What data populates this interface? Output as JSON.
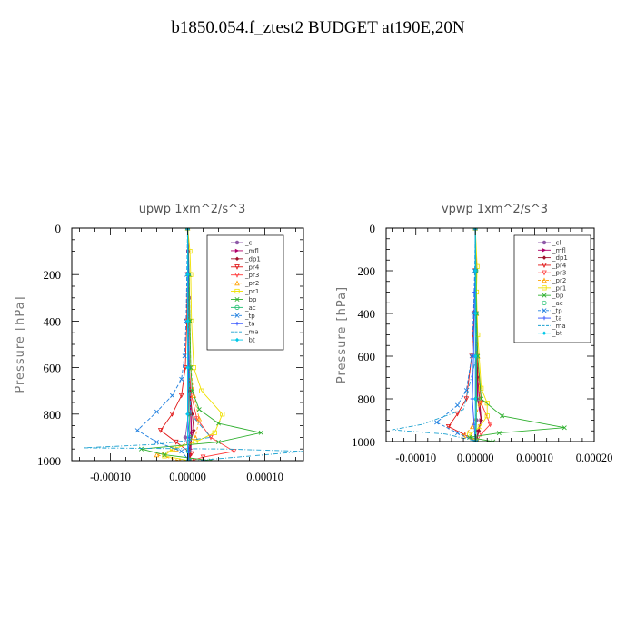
{
  "title": "b1850.054.f_ztest2  BUDGET at190E,20N",
  "colors": {
    "cl": "#8e5aa8",
    "mfl": "#b0006a",
    "dp1": "#a0102a",
    "pr4": "#e01515",
    "pr3": "#ff3a3a",
    "pr2": "#ffa000",
    "pr1": "#f0e000",
    "bp": "#30b030",
    "ac": "#20c070",
    "tp": "#2080e0",
    "ta": "#3050ff",
    "ma": "#1aa0d0",
    "bt": "#00c8e8"
  },
  "chart_data": [
    {
      "type": "line",
      "title": "upwp   1xm^2/s^3",
      "xlabel": "",
      "ylabel": "Pressure [hPa]",
      "xlim": [
        -0.00015,
        0.00015
      ],
      "ylim": [
        1000,
        0
      ],
      "y_inverted": true,
      "xticks": [
        -0.0001,
        0.0,
        0.0001
      ],
      "xtick_labels": [
        "-0.00010",
        "0.00000",
        "0.00010"
      ],
      "yticks": [
        0,
        200,
        400,
        600,
        800,
        1000
      ],
      "ytick_labels": [
        "0",
        "200",
        "400",
        "600",
        "800",
        "1000"
      ],
      "legend": "top-right",
      "series": [
        {
          "name": "_cl",
          "key": "cl",
          "x": [
            0,
            1e-06,
            1e-06,
            2e-06,
            2e-06,
            2e-06,
            1e-06,
            -3e-06,
            2e-06,
            1e-06
          ],
          "y": [
            0,
            100,
            200,
            300,
            400,
            600,
            800,
            900,
            960,
            1000
          ]
        },
        {
          "name": "_mfl",
          "key": "mfl",
          "x": [
            0,
            1e-06,
            1e-06,
            1e-06,
            2e-06,
            3e-06,
            4e-06,
            5e-06,
            4e-06,
            2e-06
          ],
          "y": [
            0,
            100,
            200,
            400,
            600,
            700,
            800,
            880,
            950,
            1000
          ]
        },
        {
          "name": "_dp1",
          "key": "dp1",
          "x": [
            0,
            1e-06,
            1e-06,
            2e-06,
            3e-06,
            6e-06,
            8e-06,
            3e-06,
            2e-06
          ],
          "y": [
            0,
            200,
            400,
            600,
            700,
            800,
            870,
            930,
            1000
          ]
        },
        {
          "name": "_pr4",
          "key": "pr4",
          "x": [
            0,
            0,
            -1e-06,
            -3e-06,
            -8e-06,
            -2e-05,
            -3.5e-05,
            -1.5e-05,
            5e-06,
            2e-06
          ],
          "y": [
            0,
            200,
            400,
            600,
            720,
            800,
            870,
            920,
            970,
            1000
          ]
        },
        {
          "name": "_pr3",
          "key": "pr3",
          "x": [
            0,
            0,
            1e-06,
            2e-06,
            5e-06,
            1.2e-05,
            3e-05,
            6e-05,
            2e-05,
            5e-06
          ],
          "y": [
            0,
            200,
            400,
            600,
            720,
            820,
            900,
            960,
            985,
            1000
          ]
        },
        {
          "name": "_pr2",
          "key": "pr2",
          "x": [
            0,
            2e-06,
            3e-06,
            4e-06,
            8e-06,
            1.5e-05,
            1e-05,
            -1.5e-05,
            -4e-05,
            -1e-05
          ],
          "y": [
            0,
            200,
            400,
            600,
            720,
            820,
            900,
            950,
            975,
            1000
          ]
        },
        {
          "name": "_pr1",
          "key": "pr1",
          "x": [
            0,
            3e-06,
            4e-06,
            5e-06,
            8e-06,
            1.8e-05,
            4.5e-05,
            3.5e-05,
            1e-05,
            -2e-05,
            -3e-05,
            2e-06
          ],
          "y": [
            0,
            100,
            200,
            400,
            600,
            700,
            800,
            880,
            920,
            950,
            980,
            1000
          ]
        },
        {
          "name": "_bp",
          "key": "bp",
          "x": [
            0,
            2e-06,
            3e-06,
            4e-06,
            6e-06,
            1.5e-05,
            4e-05,
            9.5e-05,
            4e-05,
            -6e-05,
            -3e-05,
            3e-05
          ],
          "y": [
            0,
            200,
            400,
            600,
            700,
            780,
            840,
            880,
            920,
            950,
            975,
            1000
          ]
        },
        {
          "name": "_ac",
          "key": "ac",
          "x": [
            0,
            1e-06,
            1e-06,
            2e-06,
            2e-06,
            3e-06,
            1e-06,
            2e-06
          ],
          "y": [
            0,
            200,
            400,
            600,
            800,
            900,
            960,
            1000
          ]
        },
        {
          "name": "_tp",
          "key": "tp",
          "x": [
            0,
            -1e-06,
            -2e-06,
            -4e-06,
            -8e-06,
            -2e-05,
            -4e-05,
            -6.5e-05,
            -4e-05,
            -8e-06,
            2e-06
          ],
          "y": [
            0,
            200,
            400,
            550,
            650,
            720,
            790,
            870,
            920,
            960,
            1000
          ]
        },
        {
          "name": "_ta",
          "key": "ta",
          "x": [
            0,
            1e-06,
            0,
            1e-06,
            0,
            2e-06,
            1e-06,
            1e-06
          ],
          "y": [
            0,
            200,
            400,
            600,
            800,
            900,
            960,
            1000
          ]
        },
        {
          "name": "_ma",
          "key": "ma",
          "x": [
            0,
            0,
            1e-06,
            2e-06,
            4e-06,
            3e-05,
            -4e-05,
            -0.000135,
            5e-05,
            0.00015,
            0.0001,
            1e-05
          ],
          "y": [
            0,
            200,
            400,
            600,
            800,
            900,
            930,
            945,
            950,
            960,
            975,
            1000
          ]
        },
        {
          "name": "_bt",
          "key": "bt",
          "x": [
            0,
            0,
            0,
            0,
            0,
            0
          ],
          "y": [
            0,
            200,
            400,
            600,
            800,
            1000
          ]
        }
      ]
    },
    {
      "type": "line",
      "title": "vpwp   1xm^2/s^3",
      "xlabel": "",
      "ylabel": "Pressure [hPa]",
      "xlim": [
        -0.00015,
        0.0002
      ],
      "ylim": [
        1000,
        0
      ],
      "y_inverted": true,
      "xticks": [
        -0.0001,
        0.0,
        0.0001,
        0.0002
      ],
      "xtick_labels": [
        "-0.00010",
        "0.00000",
        "0.00010",
        "0.00020"
      ],
      "yticks": [
        0,
        200,
        400,
        600,
        800,
        1000
      ],
      "ytick_labels": [
        "0",
        "200",
        "400",
        "600",
        "800",
        "1000"
      ],
      "legend": "top-right",
      "series": [
        {
          "name": "_cl",
          "key": "cl",
          "x": [
            0,
            1e-06,
            1e-06,
            1e-06,
            1e-06,
            2e-06,
            1e-06
          ],
          "y": [
            0,
            200,
            400,
            600,
            800,
            900,
            1000
          ]
        },
        {
          "name": "_mfl",
          "key": "mfl",
          "x": [
            0,
            1e-06,
            1e-06,
            2e-06,
            4e-06,
            1e-05,
            5e-06,
            2e-06
          ],
          "y": [
            0,
            200,
            400,
            600,
            800,
            900,
            950,
            1000
          ]
        },
        {
          "name": "_dp1",
          "key": "dp1",
          "x": [
            0,
            1e-06,
            2e-06,
            4e-06,
            1e-05,
            6e-06,
            2e-06
          ],
          "y": [
            0,
            200,
            400,
            700,
            900,
            950,
            1000
          ]
        },
        {
          "name": "_pr4",
          "key": "pr4",
          "x": [
            0,
            0,
            -2e-06,
            -6e-06,
            -1.5e-05,
            -3e-05,
            -4.5e-05,
            -2e-05,
            2e-06
          ],
          "y": [
            0,
            200,
            400,
            600,
            800,
            870,
            930,
            965,
            1000
          ]
        },
        {
          "name": "_pr3",
          "key": "pr3",
          "x": [
            0,
            0,
            1e-06,
            3e-06,
            1e-05,
            2.5e-05,
            1e-05,
            2e-06
          ],
          "y": [
            0,
            200,
            400,
            600,
            820,
            920,
            965,
            1000
          ]
        },
        {
          "name": "_pr2",
          "key": "pr2",
          "x": [
            0,
            1e-06,
            2e-06,
            4e-06,
            8e-06,
            -5e-06,
            -2e-05,
            1e-06
          ],
          "y": [
            0,
            200,
            400,
            600,
            820,
            930,
            975,
            1000
          ]
        },
        {
          "name": "_pr1",
          "key": "pr1",
          "x": [
            0,
            3e-06,
            2e-06,
            4e-06,
            1e-05,
            2e-05,
            2e-05,
            8e-06,
            -1e-05,
            2e-06
          ],
          "y": [
            0,
            180,
            300,
            500,
            750,
            820,
            880,
            930,
            970,
            1000
          ]
        },
        {
          "name": "_bp",
          "key": "bp",
          "x": [
            0,
            1e-06,
            2e-06,
            4e-06,
            1e-05,
            4.5e-05,
            0.00015,
            4e-05,
            -1e-05,
            3e-05
          ],
          "y": [
            0,
            200,
            400,
            600,
            800,
            880,
            935,
            960,
            980,
            1000
          ]
        },
        {
          "name": "_ac",
          "key": "ac",
          "x": [
            0,
            1e-06,
            1e-06,
            2e-06,
            2e-06,
            1e-06
          ],
          "y": [
            0,
            200,
            400,
            600,
            800,
            1000
          ]
        },
        {
          "name": "_tp",
          "key": "tp",
          "x": [
            0,
            -1e-06,
            -3e-06,
            -6e-06,
            -1.5e-05,
            -3e-05,
            -6.5e-05,
            -3e-05,
            2e-06
          ],
          "y": [
            0,
            200,
            400,
            600,
            760,
            830,
            910,
            960,
            1000
          ]
        },
        {
          "name": "_ta",
          "key": "ta",
          "x": [
            0,
            0,
            -1e-06,
            -3e-06,
            -5e-06,
            -2e-06,
            0
          ],
          "y": [
            0,
            200,
            300,
            600,
            800,
            920,
            1000
          ]
        },
        {
          "name": "_ma",
          "key": "ma",
          "x": [
            0,
            0,
            1e-06,
            2e-06,
            -2e-05,
            -9e-05,
            -0.00014,
            -5e-05,
            5e-06
          ],
          "y": [
            0,
            200,
            400,
            600,
            850,
            920,
            945,
            965,
            1000
          ]
        },
        {
          "name": "_bt",
          "key": "bt",
          "x": [
            0,
            0,
            0,
            0,
            0,
            0
          ],
          "y": [
            0,
            200,
            400,
            600,
            800,
            1000
          ]
        }
      ]
    }
  ]
}
